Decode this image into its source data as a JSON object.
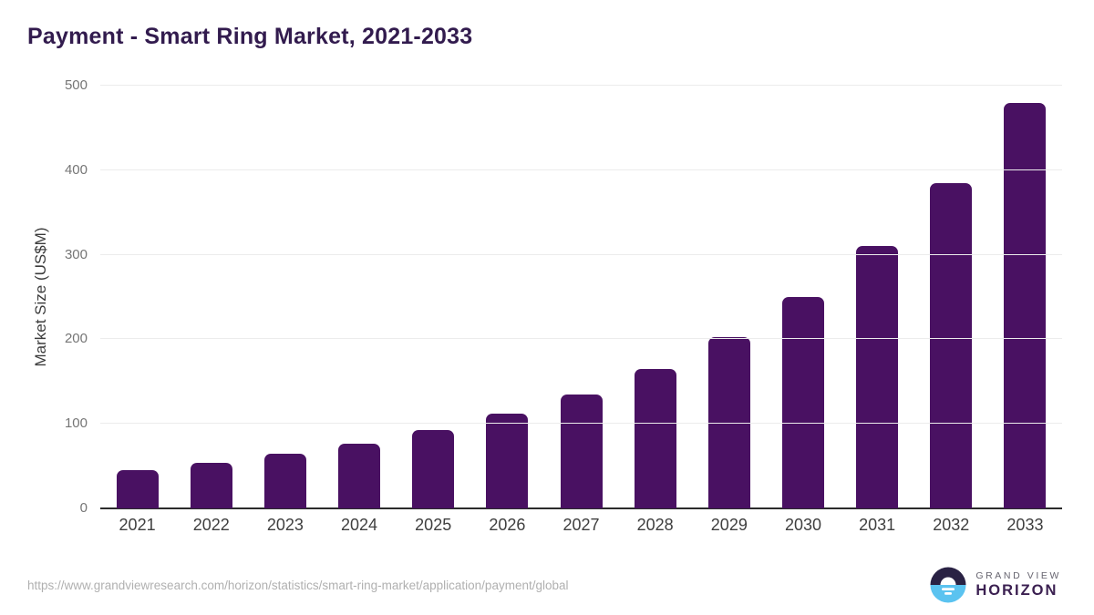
{
  "title": "Payment - Smart Ring Market, 2021-2033",
  "source_url": "https://www.grandviewresearch.com/horizon/statistics/smart-ring-market/application/payment/global",
  "branding": {
    "name_top": "GRAND VIEW",
    "name_bottom": "HORIZON"
  },
  "colors": {
    "bar": "#491162",
    "title": "#321B4E",
    "axis_line": "#2B2B2B",
    "gridline": "#ECECEC",
    "y_tick_label": "#757575",
    "x_tick_label": "#3F3F3F",
    "y_axis_title": "#3C3C3C",
    "footer_url": "#B0B0B0",
    "logo_dark_half": "#2A2244",
    "logo_blue_half": "#5BC3F0",
    "logo_text_top": "#66646F",
    "logo_text_bottom": "#3B2051"
  },
  "chart_data": {
    "type": "bar",
    "title": "Payment - Smart Ring Market, 2021-2033",
    "categories": [
      "2021",
      "2022",
      "2023",
      "2024",
      "2025",
      "2026",
      "2027",
      "2028",
      "2029",
      "2030",
      "2031",
      "2032",
      "2033"
    ],
    "values": [
      45,
      54,
      65,
      77,
      93,
      112,
      135,
      165,
      203,
      250,
      310,
      385,
      480
    ],
    "xlabel": "",
    "ylabel": "Market Size (US$M)",
    "ylim": [
      0,
      500
    ],
    "yticks": [
      0,
      100,
      200,
      300,
      400,
      500
    ],
    "grid": true,
    "legend": false,
    "bar_color": "#491162"
  }
}
